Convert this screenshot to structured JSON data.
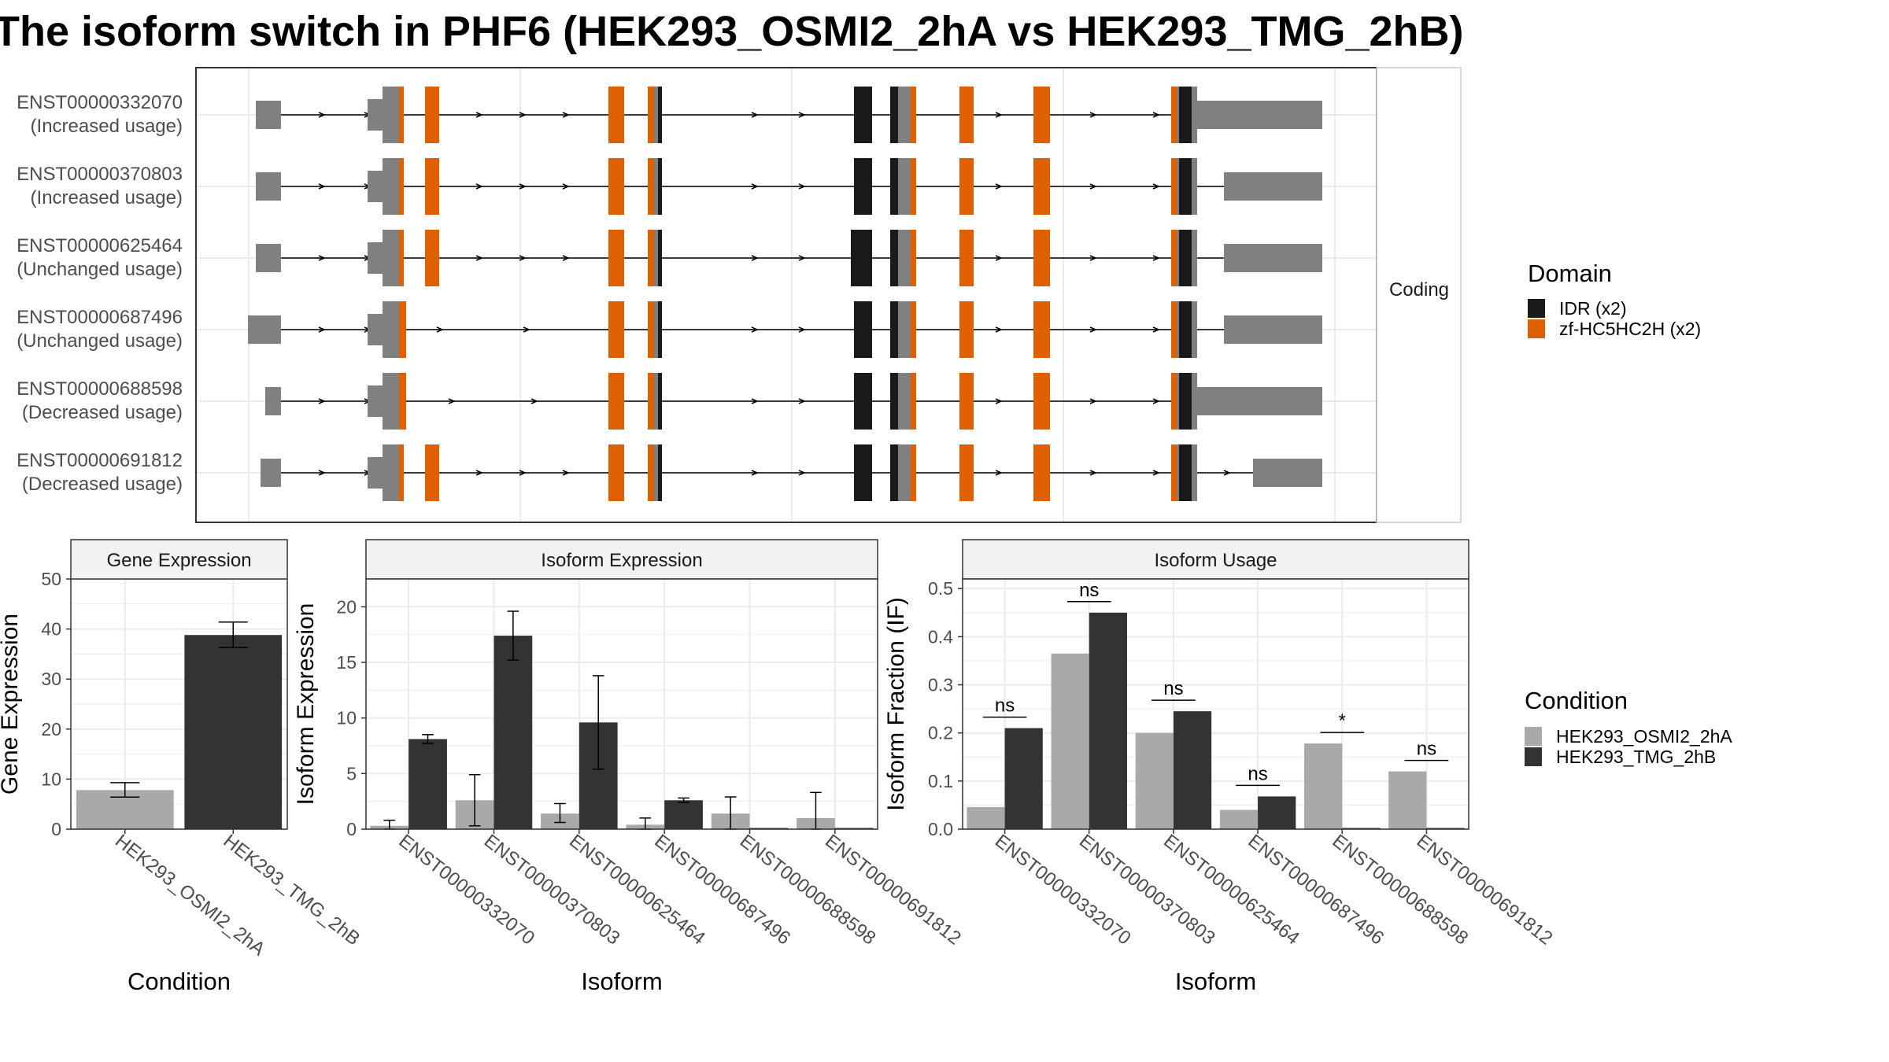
{
  "title": "The isoform switch in PHF6 (HEK293_OSMI2_2hA vs HEK293_TMG_2hB)",
  "colors": {
    "exon": "#808080",
    "idr": "#1a1a1a",
    "zf": "#e06000",
    "cond_a": "#a9a9a9",
    "cond_b": "#333333",
    "grid": "#ebebeb",
    "strip_bg": "#f2f2f2"
  },
  "structure": {
    "facet_label": "Coding",
    "transcripts": [
      {
        "id": "ENST00000332070",
        "usage": "(Increased usage)"
      },
      {
        "id": "ENST00000370803",
        "usage": "(Increased usage)"
      },
      {
        "id": "ENST00000625464",
        "usage": "(Unchanged usage)"
      },
      {
        "id": "ENST00000687496",
        "usage": "(Unchanged usage)"
      },
      {
        "id": "ENST00000688598",
        "usage": "(Decreased usage)"
      },
      {
        "id": "ENST00000691812",
        "usage": "(Decreased usage)"
      }
    ],
    "legend": {
      "title": "Domain",
      "items": [
        {
          "label": "IDR (x2)",
          "color": "#1a1a1a"
        },
        {
          "label": "zf-HC5HC2H (x2)",
          "color": "#e06000"
        }
      ]
    }
  },
  "chart_data": [
    {
      "type": "bar",
      "panel": "Gene Expression",
      "categories": [
        "HEK293_OSMI2_2hA",
        "HEK293_TMG_2hB"
      ],
      "values": [
        7.8,
        38.8
      ],
      "err_low": [
        6.4,
        36.3
      ],
      "err_high": [
        9.3,
        41.4
      ],
      "ylabel": "Gene Expression",
      "xlabel": "Condition",
      "ylim": [
        0,
        50
      ],
      "yticks": [
        0,
        10,
        20,
        30,
        40,
        50
      ]
    },
    {
      "type": "bar",
      "panel": "Isoform Expression",
      "categories": [
        "ENST00000332070",
        "ENST00000370803",
        "ENST00000625464",
        "ENST00000687496",
        "ENST00000688598",
        "ENST00000691812"
      ],
      "series": [
        {
          "name": "HEK293_OSMI2_2hA",
          "values": [
            0.3,
            2.6,
            1.4,
            0.4,
            1.4,
            1.0
          ],
          "err_low": [
            0.0,
            0.3,
            0.6,
            0.0,
            0.0,
            0.0
          ],
          "err_high": [
            0.8,
            4.9,
            2.3,
            1.0,
            2.9,
            3.3
          ]
        },
        {
          "name": "HEK293_TMG_2hB",
          "values": [
            8.1,
            17.4,
            9.6,
            2.6,
            0.0,
            0.0
          ],
          "err_low": [
            7.7,
            15.2,
            5.4,
            2.4,
            0.0,
            0.0
          ],
          "err_high": [
            8.5,
            19.6,
            13.8,
            2.8,
            0.0,
            0.0
          ]
        }
      ],
      "ylabel": "Isoform Expression",
      "xlabel": "Isoform",
      "ylim": [
        0,
        22.5
      ],
      "yticks": [
        0,
        5,
        10,
        15,
        20
      ]
    },
    {
      "type": "bar",
      "panel": "Isoform Usage",
      "categories": [
        "ENST00000332070",
        "ENST00000370803",
        "ENST00000625464",
        "ENST00000687496",
        "ENST00000688598",
        "ENST00000691812"
      ],
      "series": [
        {
          "name": "HEK293_OSMI2_2hA",
          "values": [
            0.046,
            0.365,
            0.2,
            0.04,
            0.178,
            0.12
          ]
        },
        {
          "name": "HEK293_TMG_2hB",
          "values": [
            0.21,
            0.45,
            0.245,
            0.068,
            0.0,
            0.0
          ]
        }
      ],
      "significance": [
        "ns",
        "ns",
        "ns",
        "ns",
        "*",
        "ns"
      ],
      "ylabel": "Isoform Fraction (IF)",
      "xlabel": "Isoform",
      "ylim": [
        0,
        0.52
      ],
      "yticks": [
        0.0,
        0.1,
        0.2,
        0.3,
        0.4,
        0.5
      ]
    }
  ],
  "condition_legend": {
    "title": "Condition",
    "items": [
      {
        "label": "HEK293_OSMI2_2hA",
        "color": "#a9a9a9"
      },
      {
        "label": "HEK293_TMG_2hB",
        "color": "#333333"
      }
    ]
  }
}
